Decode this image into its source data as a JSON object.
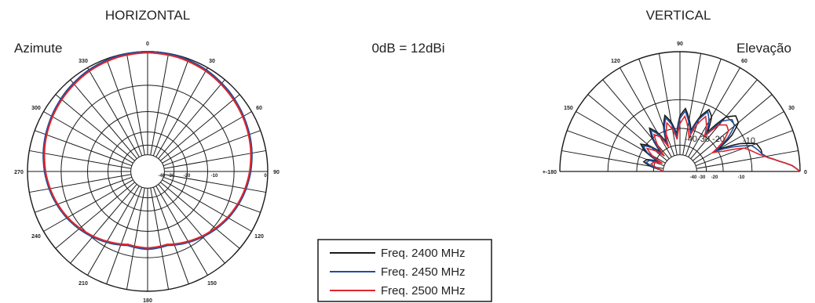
{
  "chart_data": [
    {
      "type": "polar",
      "title": "HORIZONTAL",
      "subtitle": "Azimute",
      "angle_labels": [
        "0",
        "30",
        "60",
        "90",
        "120",
        "150",
        "180",
        "210",
        "240",
        "270",
        "300",
        "330"
      ],
      "radial_labels": [
        "-40",
        "-30",
        "-20",
        "-10",
        "0"
      ],
      "radial_range_db": [
        -40,
        0
      ],
      "series": [
        {
          "name": "Freq. 2400 MHz",
          "color": "#1a1a1a",
          "angles": [
            0,
            15,
            30,
            45,
            60,
            75,
            90,
            105,
            120,
            135,
            150,
            165,
            180,
            195,
            210,
            225,
            240,
            255,
            270,
            285,
            300,
            315,
            330,
            345
          ],
          "values_db": [
            0,
            -0.3,
            -1.2,
            -2.4,
            -3.8,
            -5.2,
            -6.8,
            -8.6,
            -10.6,
            -12.8,
            -15,
            -17,
            -16.5,
            -17,
            -15,
            -12.8,
            -10.6,
            -8.6,
            -6.8,
            -5.2,
            -3.8,
            -2.4,
            -1.2,
            -0.3
          ]
        },
        {
          "name": "Freq. 2450 MHz",
          "color": "#1f4e9c",
          "angles": [
            0,
            15,
            30,
            45,
            60,
            75,
            90,
            105,
            120,
            135,
            150,
            165,
            180,
            195,
            210,
            225,
            240,
            255,
            270,
            285,
            300,
            315,
            330,
            345
          ],
          "values_db": [
            0,
            -0.2,
            -1.0,
            -2.2,
            -3.6,
            -5.0,
            -6.6,
            -8.4,
            -10.4,
            -12.6,
            -14.8,
            -16.8,
            -16.3,
            -16.8,
            -14.8,
            -12.6,
            -10.4,
            -8.4,
            -6.6,
            -5.0,
            -3.6,
            -2.2,
            -1.0,
            -0.2
          ]
        },
        {
          "name": "Freq. 2500 MHz",
          "color": "#e0262b",
          "angles": [
            0,
            15,
            30,
            45,
            60,
            75,
            90,
            105,
            120,
            135,
            150,
            165,
            180,
            195,
            210,
            225,
            240,
            255,
            270,
            285,
            300,
            315,
            330,
            345
          ],
          "values_db": [
            -0.4,
            -0.7,
            -1.5,
            -2.7,
            -4.0,
            -5.4,
            -7.0,
            -8.8,
            -10.8,
            -13.0,
            -15.2,
            -17.2,
            -16.8,
            -17.2,
            -15.2,
            -13.0,
            -10.8,
            -8.8,
            -7.0,
            -5.4,
            -4.0,
            -2.7,
            -1.5,
            -0.7
          ]
        }
      ]
    },
    {
      "type": "polar",
      "title": "VERTICAL",
      "subtitle": "Elevação",
      "angle_labels": [
        "0",
        "30",
        "60",
        "90",
        "120",
        "150",
        "+-180"
      ],
      "radial_labels": [
        "-40",
        "-30",
        "-20",
        "-10"
      ],
      "inner_labels": [
        "-10",
        "-20",
        "-30",
        "-40"
      ],
      "radial_range_db": [
        -40,
        0
      ],
      "series": [
        {
          "name": "Freq. 2400 MHz",
          "color": "#1a1a1a",
          "angles": [
            0,
            3,
            6,
            9,
            12,
            15,
            20,
            25,
            30,
            35,
            40,
            45,
            50,
            55,
            60,
            65,
            70,
            75,
            80,
            85,
            90,
            95,
            100,
            105,
            110,
            115,
            120,
            125,
            130,
            135,
            140,
            145,
            150,
            155,
            160,
            165,
            170,
            175,
            180
          ],
          "values_db": [
            0,
            -3,
            -8,
            -12,
            -14,
            -14,
            -15,
            -21,
            -30,
            -22,
            -17,
            -16,
            -19,
            -28,
            -22,
            -20,
            -24,
            -30,
            -26,
            -22,
            -25,
            -32,
            -27,
            -24,
            -28,
            -34,
            -29,
            -26,
            -30,
            -36,
            -31,
            -28,
            -31,
            -37,
            -33,
            -32,
            -35,
            -39,
            -40
          ]
        },
        {
          "name": "Freq. 2450 MHz",
          "color": "#1f4e9c",
          "angles": [
            0,
            3,
            6,
            9,
            12,
            15,
            20,
            25,
            30,
            35,
            40,
            45,
            50,
            55,
            60,
            65,
            70,
            75,
            80,
            85,
            90,
            95,
            100,
            105,
            110,
            115,
            120,
            125,
            130,
            135,
            140,
            145,
            150,
            155,
            160,
            165,
            170,
            175,
            180
          ],
          "values_db": [
            0,
            -3,
            -8,
            -12,
            -14,
            -15,
            -17,
            -24,
            -31,
            -24,
            -19,
            -18,
            -21,
            -29,
            -24,
            -21,
            -25,
            -31,
            -27,
            -23,
            -26,
            -33,
            -28,
            -25,
            -29,
            -35,
            -30,
            -27,
            -31,
            -37,
            -32,
            -29,
            -32,
            -38,
            -34,
            -33,
            -36,
            -39,
            -40
          ]
        },
        {
          "name": "Freq. 2500 MHz",
          "color": "#e0262b",
          "angles": [
            0,
            3,
            6,
            9,
            12,
            15,
            20,
            25,
            30,
            35,
            40,
            45,
            50,
            55,
            60,
            65,
            70,
            75,
            80,
            85,
            90,
            95,
            100,
            105,
            110,
            115,
            120,
            125,
            130,
            135,
            140,
            145,
            150,
            155,
            160,
            165,
            170,
            175,
            180
          ],
          "values_db": [
            0,
            -3,
            -8,
            -12,
            -15,
            -17,
            -20,
            -28,
            -32,
            -26,
            -22,
            -21,
            -23,
            -30,
            -26,
            -23,
            -27,
            -33,
            -29,
            -25,
            -28,
            -34,
            -30,
            -27,
            -31,
            -36,
            -31,
            -29,
            -33,
            -38,
            -34,
            -31,
            -34,
            -39,
            -36,
            -35,
            -37,
            -39,
            -40
          ]
        }
      ]
    }
  ],
  "reference_text": "0dB = 12dBi",
  "legend": [
    {
      "label": "Freq. 2400 MHz",
      "color": "#1a1a1a"
    },
    {
      "label": "Freq. 2450 MHz",
      "color": "#1f4e9c"
    },
    {
      "label": "Freq. 2500 MHz",
      "color": "#e0262b"
    }
  ]
}
